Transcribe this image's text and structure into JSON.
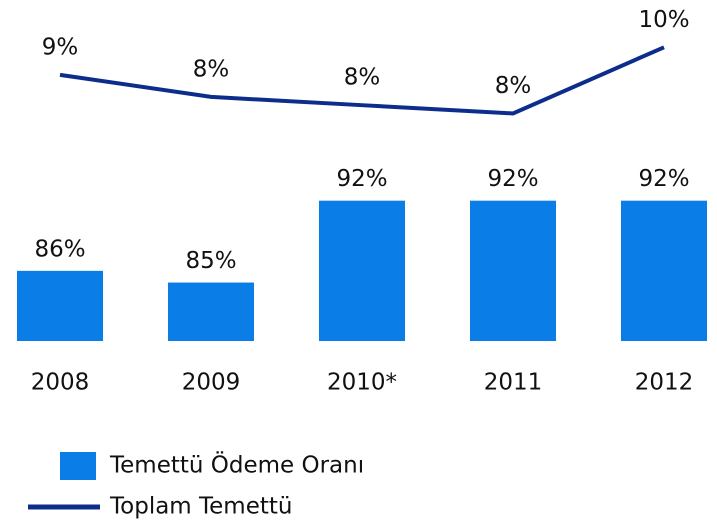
{
  "chart_data": {
    "type": "bar-line",
    "categories": [
      "2008",
      "2009",
      "2010*",
      "2011",
      "2012"
    ],
    "series": [
      {
        "name": "Temettü Ödeme Oranı",
        "type": "bar",
        "color": "#0a7de6",
        "values": [
          86,
          85,
          92,
          92,
          92
        ],
        "value_labels": [
          "86%",
          "85%",
          "92%",
          "92%",
          "92%"
        ]
      },
      {
        "name": "Toplam Temettü",
        "type": "line",
        "axis": "y2",
        "color": "#0d2d8c",
        "values": [
          9.0,
          8.2,
          7.9,
          7.6,
          10.0
        ],
        "value_labels": [
          "9%",
          "8%",
          "8%",
          "8%",
          "10%"
        ]
      }
    ],
    "ylim": [
      80,
      93
    ],
    "y2lim": [
      7,
      10.5
    ]
  }
}
